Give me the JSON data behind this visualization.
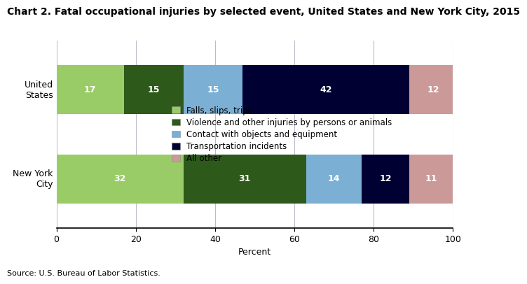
{
  "title": "Chart 2. Fatal occupational injuries by selected event, United States and New York City, 2015",
  "categories": [
    "New York\nCity",
    "United\nStates"
  ],
  "segments": [
    {
      "label": "Falls, slips, trips",
      "values": [
        32,
        17
      ],
      "color": "#99cc66"
    },
    {
      "label": "Violence and other injuries by persons or animals",
      "values": [
        31,
        15
      ],
      "color": "#2d5a1b"
    },
    {
      "label": "Contact with objects and equipment",
      "values": [
        14,
        15
      ],
      "color": "#7bafd4"
    },
    {
      "label": "Transportation incidents",
      "values": [
        12,
        42
      ],
      "color": "#000033"
    },
    {
      "label": "All other",
      "values": [
        11,
        12
      ],
      "color": "#cc9999"
    }
  ],
  "xlabel": "Percent",
  "xlim": [
    0,
    100
  ],
  "xticks": [
    0,
    20,
    40,
    60,
    80,
    100
  ],
  "source": "Source: U.S. Bureau of Labor Statistics.",
  "bar_height": 0.55,
  "text_color": "#ffffff",
  "title_fontsize": 10,
  "label_fontsize": 9,
  "tick_fontsize": 9,
  "source_fontsize": 8,
  "legend_fontsize": 8.5
}
